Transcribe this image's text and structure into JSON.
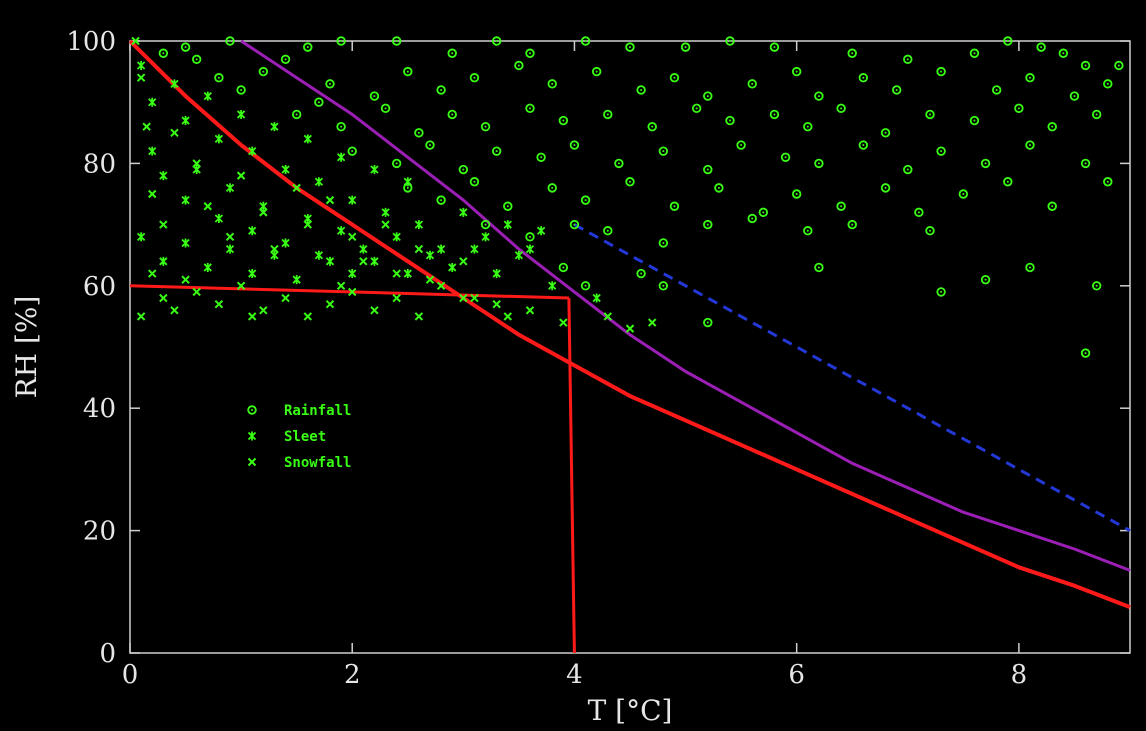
{
  "chart_data": {
    "type": "scatter",
    "title": "",
    "xlabel": "T [°C]",
    "ylabel": "RH [%]",
    "xlim": [
      0,
      9
    ],
    "ylim": [
      0,
      100
    ],
    "xticks": [
      "0",
      "2",
      "4",
      "6",
      "8"
    ],
    "yticks": [
      "0",
      "20",
      "40",
      "60",
      "80",
      "100"
    ],
    "grid": false,
    "legend_position": "center-left",
    "legend": [
      {
        "name": "Rainfall",
        "marker": "circle"
      },
      {
        "name": "Sleet",
        "marker": "star"
      },
      {
        "name": "Snowfall",
        "marker": "x"
      }
    ],
    "colors": {
      "background": "#000000",
      "points": "#39ff14",
      "threshold": "#ff1a1a",
      "purple_curve": "#9b1fb5",
      "blue_dashed_curve": "#2438d8",
      "axes": "#cfcfcf"
    },
    "series": [
      {
        "name": "Rainfall",
        "marker": "circle",
        "points": [
          [
            0.3,
            98
          ],
          [
            0.5,
            99
          ],
          [
            0.9,
            100
          ],
          [
            1.6,
            99
          ],
          [
            1.9,
            100
          ],
          [
            2.4,
            100
          ],
          [
            2.9,
            98
          ],
          [
            3.3,
            100
          ],
          [
            3.6,
            98
          ],
          [
            4.1,
            100
          ],
          [
            4.5,
            99
          ],
          [
            5.0,
            99
          ],
          [
            5.4,
            100
          ],
          [
            5.8,
            99
          ],
          [
            6.5,
            98
          ],
          [
            7.0,
            97
          ],
          [
            7.6,
            98
          ],
          [
            7.9,
            100
          ],
          [
            8.2,
            99
          ],
          [
            8.4,
            98
          ],
          [
            8.6,
            96
          ],
          [
            8.9,
            96
          ],
          [
            1.2,
            95
          ],
          [
            1.8,
            93
          ],
          [
            2.2,
            91
          ],
          [
            2.5,
            95
          ],
          [
            2.8,
            92
          ],
          [
            3.1,
            94
          ],
          [
            3.5,
            96
          ],
          [
            3.8,
            93
          ],
          [
            4.2,
            95
          ],
          [
            4.6,
            92
          ],
          [
            4.9,
            94
          ],
          [
            5.2,
            91
          ],
          [
            5.6,
            93
          ],
          [
            6.0,
            95
          ],
          [
            6.2,
            91
          ],
          [
            6.6,
            94
          ],
          [
            6.9,
            92
          ],
          [
            7.3,
            95
          ],
          [
            7.8,
            92
          ],
          [
            8.1,
            94
          ],
          [
            8.5,
            91
          ],
          [
            8.8,
            93
          ],
          [
            1.5,
            88
          ],
          [
            1.9,
            86
          ],
          [
            2.3,
            89
          ],
          [
            2.6,
            85
          ],
          [
            2.9,
            88
          ],
          [
            3.2,
            86
          ],
          [
            3.6,
            89
          ],
          [
            3.9,
            87
          ],
          [
            4.3,
            88
          ],
          [
            4.7,
            86
          ],
          [
            5.1,
            89
          ],
          [
            5.4,
            87
          ],
          [
            5.8,
            88
          ],
          [
            6.1,
            86
          ],
          [
            6.4,
            89
          ],
          [
            6.8,
            85
          ],
          [
            7.2,
            88
          ],
          [
            7.6,
            87
          ],
          [
            8.0,
            89
          ],
          [
            8.3,
            86
          ],
          [
            8.7,
            88
          ],
          [
            2.0,
            82
          ],
          [
            2.4,
            80
          ],
          [
            2.7,
            83
          ],
          [
            3.0,
            79
          ],
          [
            3.3,
            82
          ],
          [
            3.7,
            81
          ],
          [
            4.0,
            83
          ],
          [
            4.4,
            80
          ],
          [
            4.8,
            82
          ],
          [
            5.2,
            79
          ],
          [
            5.5,
            83
          ],
          [
            5.9,
            81
          ],
          [
            6.2,
            80
          ],
          [
            6.6,
            83
          ],
          [
            7.0,
            79
          ],
          [
            7.3,
            82
          ],
          [
            7.7,
            80
          ],
          [
            8.1,
            83
          ],
          [
            8.6,
            80
          ],
          [
            2.5,
            76
          ],
          [
            2.8,
            74
          ],
          [
            3.1,
            77
          ],
          [
            3.4,
            73
          ],
          [
            3.8,
            76
          ],
          [
            4.1,
            74
          ],
          [
            4.5,
            77
          ],
          [
            4.9,
            73
          ],
          [
            5.3,
            76
          ],
          [
            5.7,
            72
          ],
          [
            6.0,
            75
          ],
          [
            6.4,
            73
          ],
          [
            6.8,
            76
          ],
          [
            7.1,
            72
          ],
          [
            7.5,
            75
          ],
          [
            7.9,
            77
          ],
          [
            8.3,
            73
          ],
          [
            8.8,
            77
          ],
          [
            3.2,
            70
          ],
          [
            3.6,
            68
          ],
          [
            4.0,
            70
          ],
          [
            4.3,
            69
          ],
          [
            4.8,
            67
          ],
          [
            5.2,
            70
          ],
          [
            5.6,
            71
          ],
          [
            6.1,
            69
          ],
          [
            6.5,
            70
          ],
          [
            7.2,
            69
          ],
          [
            3.9,
            63
          ],
          [
            4.1,
            60
          ],
          [
            4.6,
            62
          ],
          [
            4.8,
            60
          ],
          [
            5.2,
            54
          ],
          [
            6.2,
            63
          ],
          [
            7.3,
            59
          ],
          [
            7.7,
            61
          ],
          [
            8.1,
            63
          ],
          [
            8.7,
            60
          ],
          [
            8.6,
            49
          ],
          [
            1.0,
            92
          ],
          [
            1.4,
            97
          ],
          [
            1.7,
            90
          ],
          [
            0.8,
            94
          ],
          [
            0.6,
            97
          ]
        ]
      },
      {
        "name": "Sleet",
        "marker": "star",
        "points": [
          [
            0.1,
            96
          ],
          [
            0.2,
            90
          ],
          [
            0.4,
            93
          ],
          [
            0.5,
            87
          ],
          [
            0.7,
            91
          ],
          [
            0.8,
            84
          ],
          [
            1.0,
            88
          ],
          [
            1.1,
            82
          ],
          [
            1.3,
            86
          ],
          [
            1.4,
            79
          ],
          [
            1.6,
            84
          ],
          [
            1.7,
            77
          ],
          [
            1.9,
            81
          ],
          [
            2.0,
            74
          ],
          [
            2.2,
            79
          ],
          [
            2.3,
            72
          ],
          [
            2.5,
            77
          ],
          [
            0.2,
            82
          ],
          [
            0.3,
            78
          ],
          [
            0.5,
            74
          ],
          [
            0.6,
            79
          ],
          [
            0.8,
            71
          ],
          [
            0.9,
            76
          ],
          [
            1.1,
            69
          ],
          [
            1.2,
            73
          ],
          [
            1.4,
            67
          ],
          [
            1.6,
            71
          ],
          [
            1.7,
            65
          ],
          [
            1.9,
            69
          ],
          [
            2.1,
            66
          ],
          [
            2.4,
            68
          ],
          [
            2.6,
            70
          ],
          [
            2.8,
            66
          ],
          [
            3.0,
            72
          ],
          [
            3.2,
            68
          ],
          [
            3.4,
            70
          ],
          [
            3.6,
            66
          ],
          [
            3.7,
            69
          ],
          [
            0.1,
            68
          ],
          [
            0.3,
            64
          ],
          [
            0.5,
            67
          ],
          [
            0.7,
            63
          ],
          [
            0.9,
            66
          ],
          [
            1.1,
            62
          ],
          [
            1.3,
            65
          ],
          [
            1.5,
            61
          ],
          [
            1.8,
            64
          ],
          [
            2.0,
            62
          ],
          [
            2.2,
            64
          ],
          [
            2.5,
            62
          ],
          [
            2.7,
            65
          ],
          [
            2.9,
            63
          ],
          [
            3.1,
            66
          ],
          [
            3.3,
            62
          ],
          [
            3.5,
            65
          ],
          [
            3.8,
            60
          ],
          [
            4.2,
            58
          ]
        ]
      },
      {
        "name": "Snowfall",
        "marker": "x",
        "points": [
          [
            0.05,
            100
          ],
          [
            0.1,
            94
          ],
          [
            0.15,
            86
          ],
          [
            0.2,
            75
          ],
          [
            0.3,
            70
          ],
          [
            0.4,
            85
          ],
          [
            0.6,
            80
          ],
          [
            0.7,
            73
          ],
          [
            0.9,
            68
          ],
          [
            1.0,
            78
          ],
          [
            1.2,
            72
          ],
          [
            1.3,
            66
          ],
          [
            1.5,
            76
          ],
          [
            1.6,
            70
          ],
          [
            1.8,
            74
          ],
          [
            2.0,
            68
          ],
          [
            2.1,
            64
          ],
          [
            2.3,
            70
          ],
          [
            2.4,
            62
          ],
          [
            2.6,
            66
          ],
          [
            2.8,
            60
          ],
          [
            3.0,
            64
          ],
          [
            3.1,
            58
          ],
          [
            0.2,
            62
          ],
          [
            0.3,
            58
          ],
          [
            0.4,
            56
          ],
          [
            0.6,
            59
          ],
          [
            0.8,
            57
          ],
          [
            1.0,
            60
          ],
          [
            1.2,
            56
          ],
          [
            1.4,
            58
          ],
          [
            1.6,
            55
          ],
          [
            1.8,
            57
          ],
          [
            2.0,
            59
          ],
          [
            2.2,
            56
          ],
          [
            2.4,
            58
          ],
          [
            2.6,
            55
          ],
          [
            3.0,
            58
          ],
          [
            3.3,
            57
          ],
          [
            3.6,
            56
          ],
          [
            3.9,
            54
          ],
          [
            4.3,
            55
          ],
          [
            4.5,
            53
          ],
          [
            4.7,
            54
          ],
          [
            0.1,
            55
          ],
          [
            0.5,
            61
          ],
          [
            1.1,
            55
          ],
          [
            1.9,
            60
          ],
          [
            2.7,
            61
          ],
          [
            3.4,
            55
          ]
        ]
      }
    ],
    "lines": [
      {
        "name": "red_curve",
        "x": [
          0,
          0.5,
          1,
          1.5,
          2,
          2.5,
          3,
          3.5,
          4,
          4.5,
          5,
          5.5,
          6,
          6.5,
          7,
          7.5,
          8,
          8.5,
          9
        ],
        "y": [
          100,
          91,
          83,
          76,
          70,
          64,
          58,
          52,
          47,
          42,
          38,
          34,
          30,
          26,
          22,
          18,
          14,
          11,
          7.5
        ]
      },
      {
        "name": "red_threshold_horizontal",
        "x": [
          0,
          3.95
        ],
        "y": [
          60,
          58
        ]
      },
      {
        "name": "red_threshold_vertical",
        "x": [
          3.95,
          4.0
        ],
        "y": [
          58,
          0
        ]
      },
      {
        "name": "purple_curve",
        "x": [
          1,
          1.5,
          2,
          2.5,
          3,
          3.5,
          4,
          4.5,
          5,
          5.5,
          6,
          6.5,
          7,
          7.5,
          8,
          8.5,
          9
        ],
        "y": [
          100,
          94,
          88,
          81,
          74,
          66,
          59,
          52,
          46,
          41,
          36,
          31,
          27,
          23,
          20,
          17,
          13.5
        ]
      },
      {
        "name": "blue_dashed_curve",
        "x": [
          4,
          4.5,
          5,
          5.5,
          6,
          6.5,
          7,
          7.5,
          8,
          8.5,
          9
        ],
        "y": [
          70,
          65,
          60,
          55,
          50,
          45,
          40,
          35,
          30,
          25,
          20
        ]
      }
    ]
  }
}
